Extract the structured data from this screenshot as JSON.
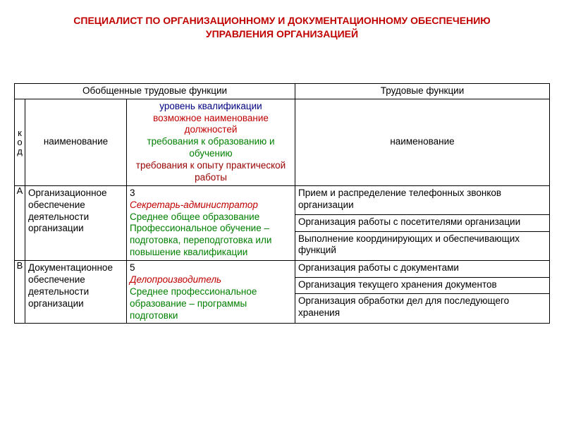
{
  "colors": {
    "title": "#c00000",
    "blue": "#000080",
    "red": "#c00000",
    "green": "#008000",
    "darkred": "#990000",
    "border": "#000000",
    "background": "#ffffff"
  },
  "title_line1": "СПЕЦИАЛИСТ ПО ОРГАНИЗАЦИОННОМУ И ДОКУМЕНТАЦИОННОМУ ОБЕСПЕЧЕНИЮ",
  "title_line2": "УПРАВЛЕНИЯ ОРГАНИЗАЦИЕЙ",
  "header": {
    "left": "Обобщенные трудовые функции",
    "right": "Трудовые функции",
    "code": "код",
    "name": "наименование",
    "level_l1": "уровень квалификации",
    "level_l2": "возможное наименование должностей",
    "level_l3": "требования к образованию и обучению",
    "level_l4": "требования к опыту практической работы",
    "func": "наименование"
  },
  "rowA": {
    "code": "А",
    "name": "Организационное обеспечение деятельности организации",
    "level_num": "3",
    "level_job": "Секретарь-администратор",
    "level_edu": "Среднее общее образование Профессиональное обучение – подготовка, переподготовка или  повышение квалификации",
    "f1": "Прием и распределение телефонных звонков организации",
    "f2": "Организация работы с посетителями организации",
    "f3": "Выполнение координирующих и  обеспечивающих функций"
  },
  "rowB": {
    "code": "В",
    "name": "Документационное обеспечение деятельности организации",
    "level_num": "5",
    "level_job": "Делопроизводитель",
    "level_edu": "Среднее профессиональное образование – программы подготовки",
    "f1": "Организация работы с документами",
    "f2": "Организация текущего хранения документов",
    "f3": "Организация обработки дел для последующего хранения"
  }
}
